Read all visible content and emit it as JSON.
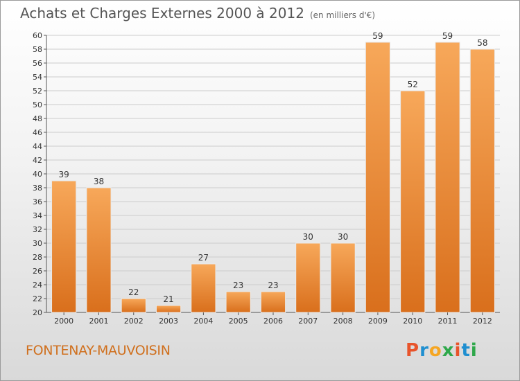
{
  "title": "Achats et Charges Externes 2000 à 2012",
  "subtitle": "(en milliers d'€)",
  "commune": "FONTENAY-MAUVOISIN",
  "logo": {
    "letters": [
      "P",
      "r",
      "o",
      "x",
      "i",
      "t",
      "i"
    ]
  },
  "colors": {
    "bar_top": "#f7a85a",
    "bar_bottom": "#d96f1c",
    "accent": "#d0701e",
    "grid": "#cccccc",
    "axis": "#555555"
  },
  "chart_data": {
    "type": "bar",
    "categories": [
      "2000",
      "2001",
      "2002",
      "2003",
      "2004",
      "2005",
      "2006",
      "2007",
      "2008",
      "2009",
      "2010",
      "2011",
      "2012"
    ],
    "values": [
      39,
      38,
      22,
      21,
      27,
      23,
      23,
      30,
      30,
      59,
      52,
      59,
      58
    ],
    "ylim": [
      20,
      60
    ],
    "yticks": [
      20,
      22,
      24,
      26,
      28,
      30,
      32,
      34,
      36,
      38,
      40,
      42,
      44,
      46,
      48,
      50,
      52,
      54,
      56,
      58,
      60
    ],
    "grid": true,
    "data_labels": true
  }
}
